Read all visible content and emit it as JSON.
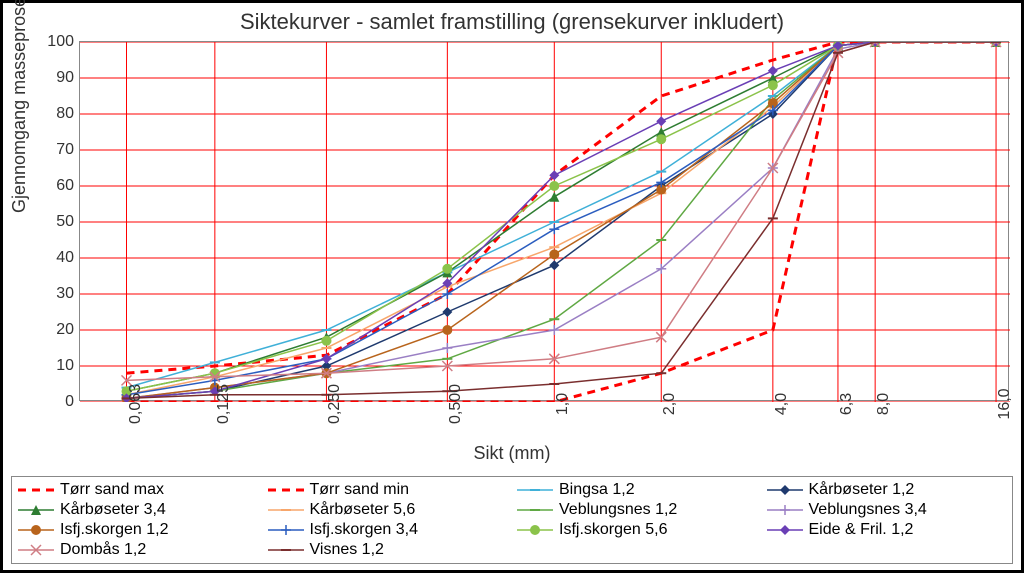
{
  "chart": {
    "title": "Siktekurver - samlet framstilling (grensekurver inkludert)",
    "title_fontsize": 22,
    "xlabel": "Sikt (mm)",
    "ylabel": "Gjennomgang masseprosent",
    "label_fontsize": 18,
    "type": "line",
    "background_color": "#ffffff",
    "grid_color": "#ff0000",
    "grid_width": 1,
    "border_color": "#888888",
    "ylim": [
      0,
      100
    ],
    "ytick_step": 10,
    "yticks": [
      0,
      10,
      20,
      30,
      40,
      50,
      60,
      70,
      80,
      90,
      100
    ],
    "x_categories": [
      "0,063",
      "0,125",
      "0,250",
      "0,500",
      "1,0",
      "2,0",
      "4,0",
      "6,3",
      "8,0",
      "16,0"
    ],
    "x_positions": [
      0.05,
      0.145,
      0.265,
      0.395,
      0.51,
      0.625,
      0.745,
      0.815,
      0.855,
      0.985
    ],
    "tick_label_fontsize": 16,
    "series": [
      {
        "label": "Tørr sand max",
        "color": "#ff0000",
        "dash": "8,6",
        "width": 3,
        "marker": "none",
        "type": "line",
        "y": [
          8,
          10,
          13,
          30,
          63,
          85,
          95,
          100,
          100,
          100
        ]
      },
      {
        "label": "Tørr sand min",
        "color": "#ff0000",
        "dash": "8,6",
        "width": 3,
        "marker": "none",
        "type": "line",
        "y": [
          0,
          0,
          0,
          0,
          0,
          8,
          20,
          100,
          100,
          100
        ]
      },
      {
        "label": "Bingsa 1,2",
        "color": "#3fb0d8",
        "dash": "",
        "width": 1.5,
        "marker": "dash",
        "type": "line",
        "y": [
          4,
          11,
          20,
          36,
          50,
          64,
          85,
          99,
          100,
          100
        ]
      },
      {
        "label": "Kårbøseter  1,2",
        "color": "#1f3a6e",
        "dash": "",
        "width": 1.5,
        "marker": "diamond",
        "type": "line",
        "y": [
          1,
          3,
          10,
          25,
          38,
          60,
          80,
          99,
          100,
          100
        ]
      },
      {
        "label": "Kårbøseter 3,4",
        "color": "#2e7d32",
        "dash": "",
        "width": 1.5,
        "marker": "triangle",
        "type": "line",
        "y": [
          3,
          8,
          18,
          36,
          57,
          75,
          90,
          99,
          100,
          100
        ]
      },
      {
        "label": "Kårbøseter 5,6",
        "color": "#f7a66b",
        "dash": "",
        "width": 1.5,
        "marker": "dash",
        "type": "line",
        "y": [
          2,
          7,
          15,
          32,
          43,
          58,
          82,
          99,
          100,
          100
        ]
      },
      {
        "label": "Veblungsnes 1,2",
        "color": "#5fa843",
        "dash": "",
        "width": 1.5,
        "marker": "dash",
        "type": "line",
        "y": [
          1,
          3,
          8,
          12,
          23,
          45,
          84,
          99,
          100,
          100
        ]
      },
      {
        "label": "Veblungsnes 3,4",
        "color": "#9a7fc4",
        "dash": "",
        "width": 1.5,
        "marker": "plus",
        "type": "line",
        "y": [
          1,
          4,
          8,
          15,
          20,
          37,
          65,
          98,
          100,
          100
        ]
      },
      {
        "label": "Isfj.skorgen 1,2",
        "color": "#b8641c",
        "dash": "",
        "width": 1.5,
        "marker": "circle",
        "type": "line",
        "y": [
          1,
          4,
          8,
          20,
          41,
          59,
          83,
          99,
          100,
          100
        ]
      },
      {
        "label": "Isfj.skorgen 3,4",
        "color": "#2b5dbf",
        "dash": "",
        "width": 1.5,
        "marker": "plus",
        "type": "line",
        "y": [
          2,
          6,
          12,
          30,
          48,
          61,
          81,
          99,
          100,
          100
        ]
      },
      {
        "label": "Isfj.skorgen 5,6",
        "color": "#8bc34a",
        "dash": "",
        "width": 1.5,
        "marker": "circle",
        "type": "line",
        "y": [
          3,
          8,
          17,
          37,
          60,
          73,
          88,
          99,
          100,
          100
        ]
      },
      {
        "label": "Eide & Fril. 1,2",
        "color": "#6a3fb5",
        "dash": "",
        "width": 1.5,
        "marker": "diamond",
        "type": "line",
        "y": [
          1,
          3,
          12,
          33,
          63,
          78,
          92,
          99,
          100,
          100
        ]
      },
      {
        "label": "Dombås  1,2",
        "color": "#cf7d84",
        "dash": "",
        "width": 1.5,
        "marker": "x",
        "type": "line",
        "y": [
          6,
          7,
          8,
          10,
          12,
          18,
          65,
          97,
          100,
          100
        ]
      },
      {
        "label": "Visnes 1,2",
        "color": "#7a2e2e",
        "dash": "",
        "width": 1.5,
        "marker": "dash",
        "type": "line",
        "y": [
          1,
          2,
          2,
          3,
          5,
          8,
          51,
          97,
          100,
          100
        ]
      }
    ],
    "legend": {
      "columns": 4,
      "fontsize": 16,
      "border_color": "#888888",
      "position": "bottom"
    },
    "marker_size": 5
  }
}
